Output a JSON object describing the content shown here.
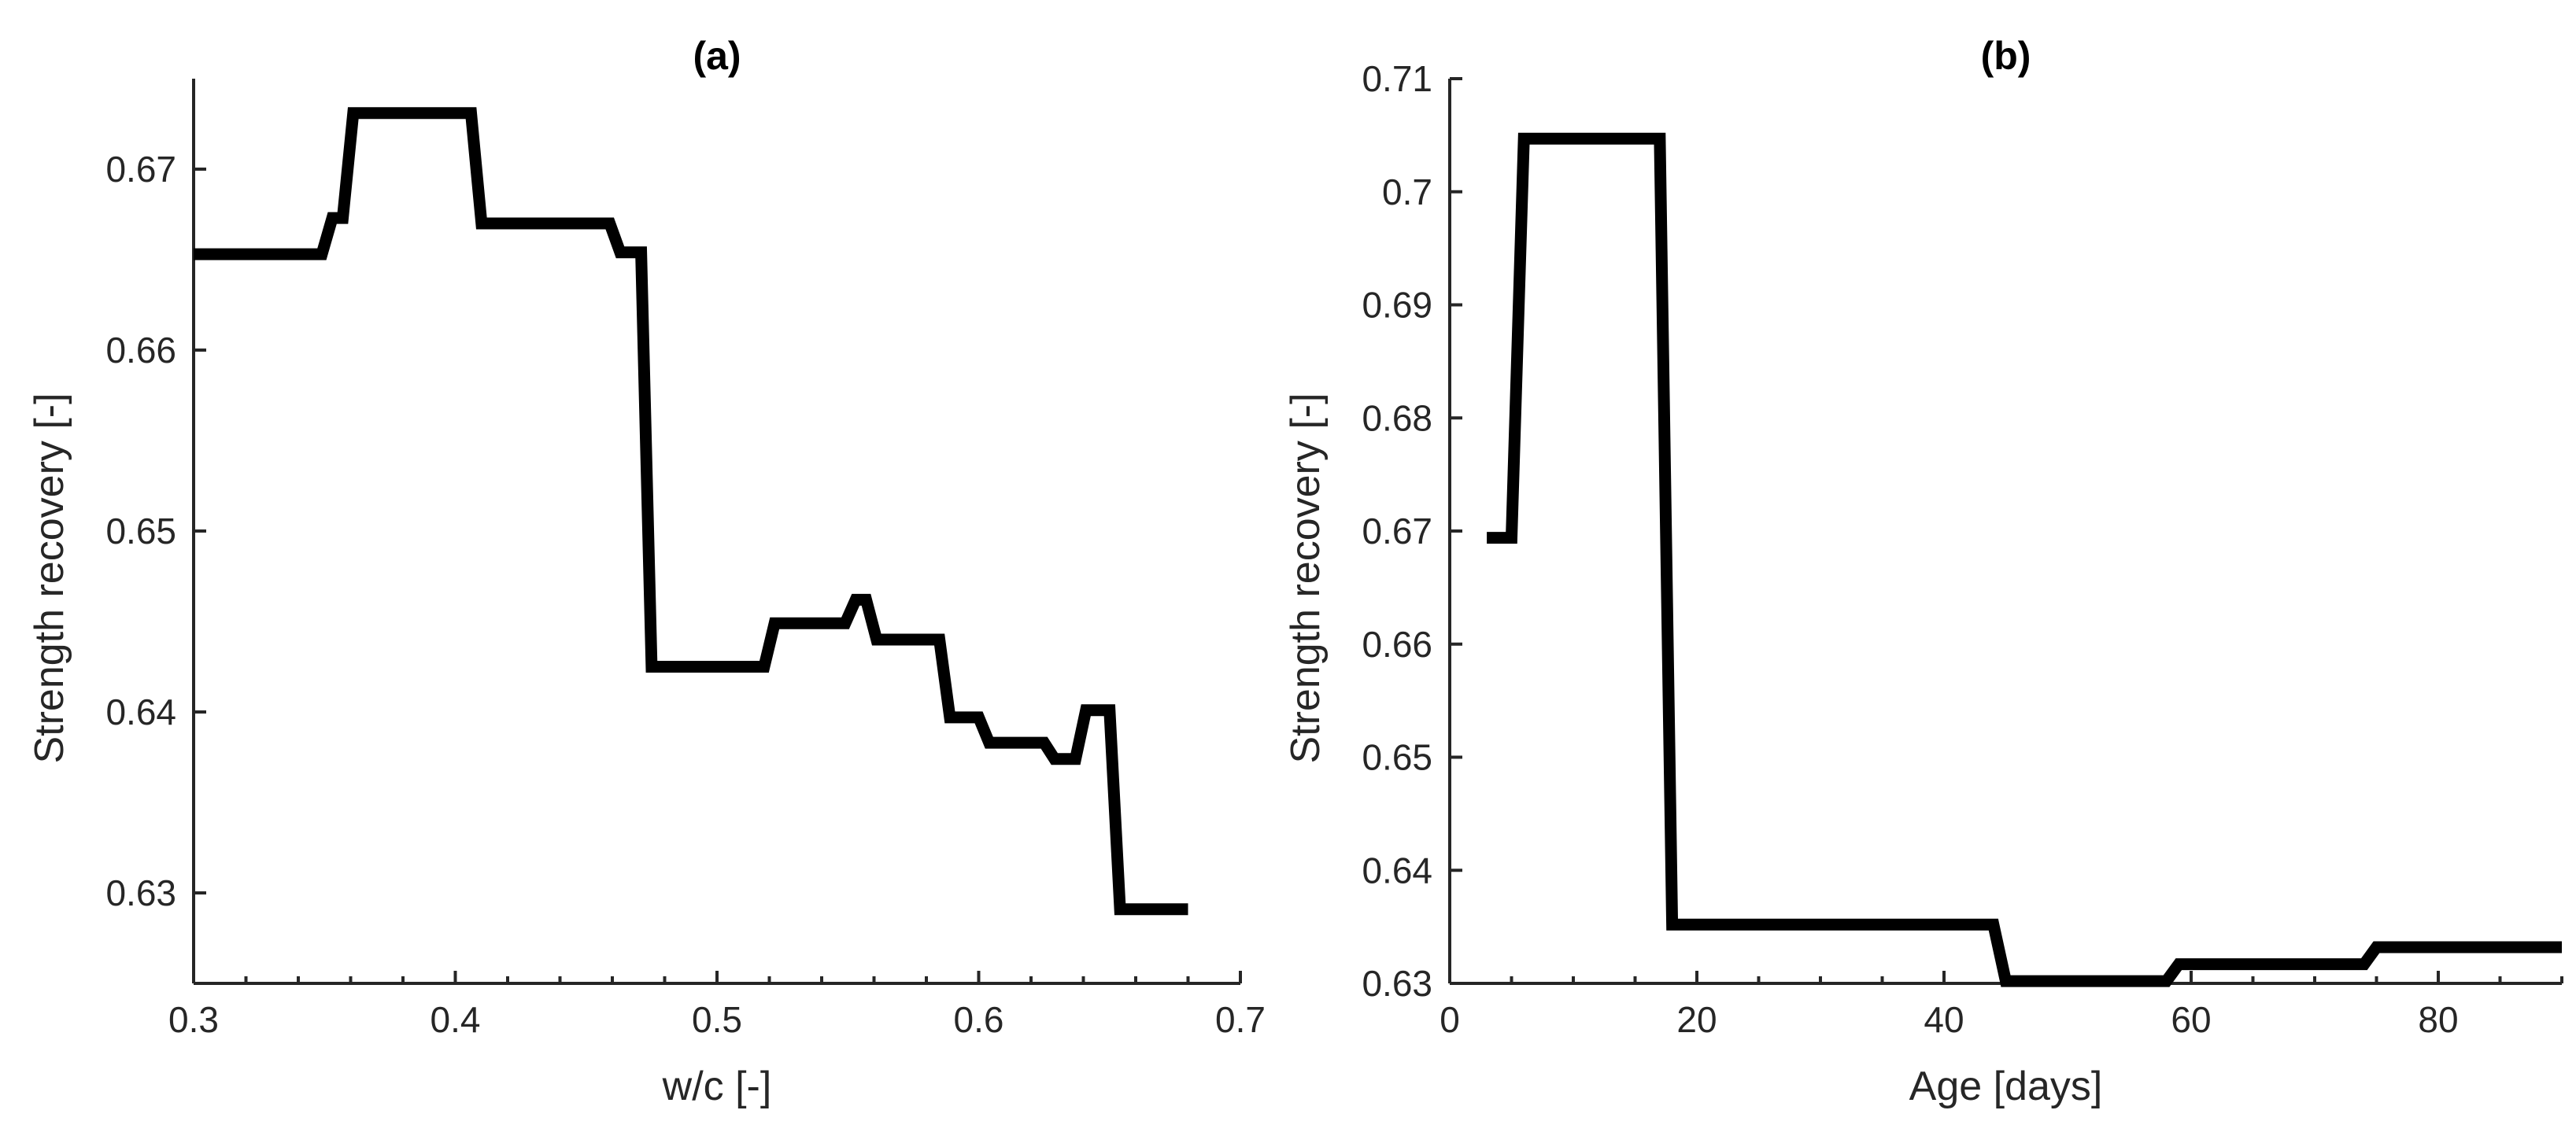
{
  "chart_data": [
    {
      "type": "line",
      "title": "(a)",
      "xlabel": "w/c [-]",
      "ylabel": "Strength recovery [-]",
      "xlim": [
        0.3,
        0.7
      ],
      "ylim": [
        0.625,
        0.675
      ],
      "xticks": [
        0.3,
        0.4,
        0.5,
        0.6,
        0.7
      ],
      "xtick_labels": [
        "0.3",
        "0.4",
        "0.5",
        "0.6",
        "0.7"
      ],
      "yticks": [
        0.63,
        0.64,
        0.65,
        0.66,
        0.67
      ],
      "ytick_labels": [
        "0.63",
        "0.64",
        "0.65",
        "0.66",
        "0.67"
      ],
      "grid": false,
      "series": [
        {
          "color": "#000000",
          "x": [
            0.3,
            0.349,
            0.353,
            0.357,
            0.361,
            0.406,
            0.41,
            0.459,
            0.463,
            0.471,
            0.475,
            0.479,
            0.518,
            0.522,
            0.549,
            0.553,
            0.557,
            0.561,
            0.585,
            0.589,
            0.6,
            0.604,
            0.625,
            0.629,
            0.637,
            0.641,
            0.65,
            0.654,
            0.68
          ],
          "y": [
            0.6653,
            0.6653,
            0.6673,
            0.6673,
            0.6731,
            0.6731,
            0.667,
            0.667,
            0.6654,
            0.6654,
            0.6425,
            0.6425,
            0.6425,
            0.6449,
            0.6449,
            0.6462,
            0.6462,
            0.644,
            0.644,
            0.6397,
            0.6397,
            0.6383,
            0.6383,
            0.6374,
            0.6374,
            0.6401,
            0.6401,
            0.6291,
            0.6291
          ]
        }
      ]
    },
    {
      "type": "line",
      "title": "(b)",
      "xlabel": "Age [days]",
      "ylabel": "Strength recovery [-]",
      "xlim": [
        0,
        90
      ],
      "ylim": [
        0.63,
        0.71
      ],
      "xticks": [
        0,
        20,
        40,
        60,
        80
      ],
      "xtick_labels": [
        "0",
        "20",
        "40",
        "60",
        "80"
      ],
      "yticks": [
        0.63,
        0.64,
        0.65,
        0.66,
        0.67,
        0.68,
        0.69,
        0.7,
        0.71
      ],
      "ytick_labels": [
        "0.63",
        "0.64",
        "0.65",
        "0.66",
        "0.67",
        "0.68",
        "0.69",
        "0.7",
        "0.71"
      ],
      "grid": false,
      "series": [
        {
          "color": "#000000",
          "x": [
            3,
            5,
            6,
            17,
            18,
            44,
            45,
            58,
            59,
            74,
            75,
            90
          ],
          "y": [
            0.6694,
            0.6694,
            0.7047,
            0.7047,
            0.6352,
            0.6352,
            0.6302,
            0.6302,
            0.6317,
            0.6317,
            0.6332,
            0.6332
          ]
        }
      ]
    }
  ]
}
